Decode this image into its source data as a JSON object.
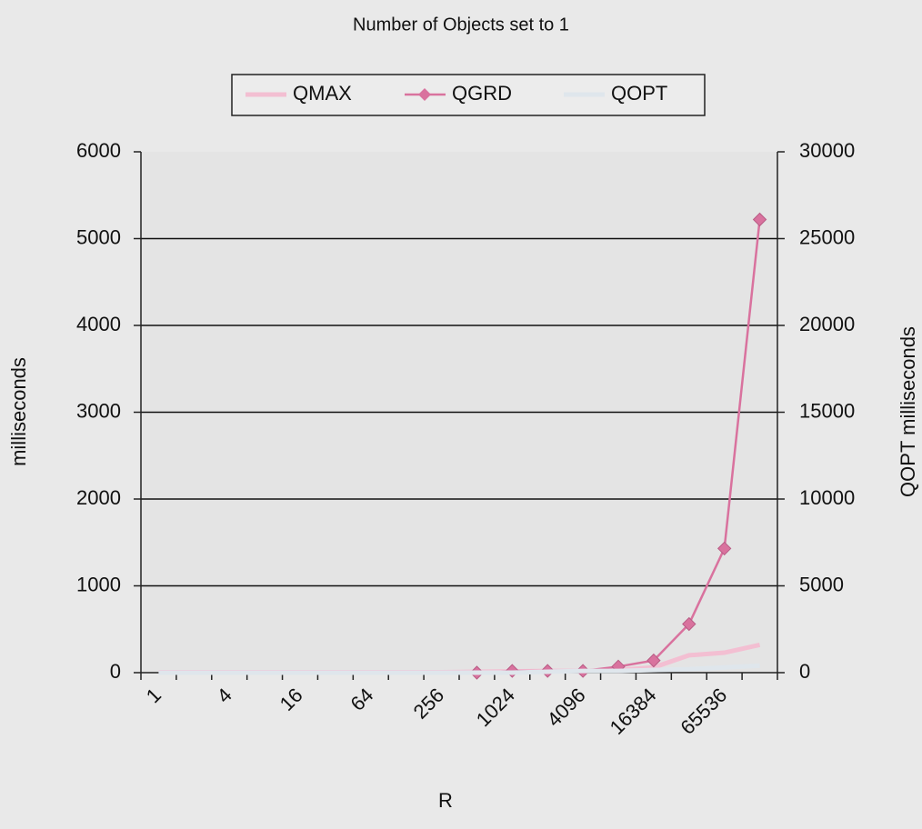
{
  "chart_data": {
    "type": "line",
    "title": "Number of Objects set to 1",
    "xlabel": "R",
    "ylabel": "milliseconds",
    "y2label": "QOPT milliseconds",
    "categories": [
      "1",
      null,
      "4",
      null,
      "16",
      null,
      "64",
      null,
      "256",
      null,
      "1024",
      null,
      "4096",
      null,
      "16384",
      null,
      "65536",
      null
    ],
    "series": [
      {
        "name": "QMAX",
        "color": "#f3bfd2",
        "marker": "none",
        "values": [
          5,
          5,
          5,
          5,
          5,
          5,
          5,
          5,
          5,
          10,
          15,
          20,
          20,
          30,
          60,
          200,
          230,
          320
        ]
      },
      {
        "name": "QGRD",
        "color": "#d9729e",
        "marker": "diamond",
        "values": [
          null,
          null,
          null,
          null,
          null,
          null,
          null,
          null,
          null,
          0,
          20,
          20,
          20,
          70,
          140,
          560,
          1430,
          5220
        ]
      },
      {
        "name": "QOPT",
        "color": "#dfe6ec",
        "marker": "none",
        "axis": "y2",
        "values": [
          0,
          0,
          0,
          0,
          0,
          0,
          0,
          0,
          0,
          0,
          0,
          50,
          100,
          100,
          150,
          200,
          300,
          400
        ]
      }
    ],
    "ylim": [
      0,
      6000
    ],
    "yticks": [
      0,
      1000,
      2000,
      3000,
      4000,
      5000,
      6000
    ],
    "y2lim": [
      0,
      30000
    ],
    "y2ticks": [
      0,
      5000,
      10000,
      15000,
      20000,
      25000,
      30000
    ],
    "grid": true,
    "legend": "top"
  }
}
